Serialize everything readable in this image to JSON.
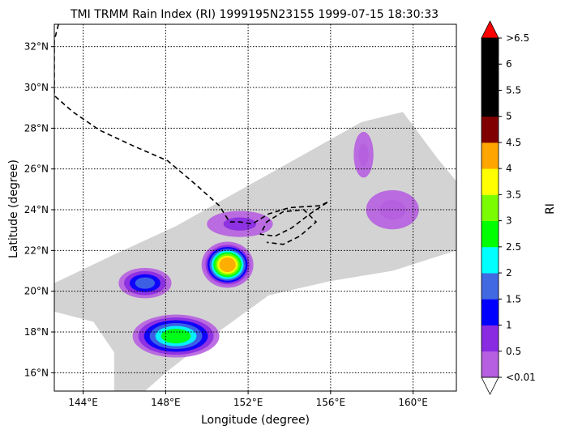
{
  "chart_data": {
    "type": "heatmap",
    "title": "TMI TRMM Rain Index (RI) 1999195N23155 1999-07-15 18:30:33",
    "xlabel": "Longitude (degree)",
    "ylabel": "Latitude (degree)",
    "xlim": [
      142.6,
      162.1
    ],
    "ylim": [
      15.1,
      33.1
    ],
    "x_ticks": [
      144,
      148,
      152,
      156,
      160
    ],
    "x_tick_labels": [
      "144°E",
      "148°E",
      "152°E",
      "156°E",
      "160°E"
    ],
    "y_ticks": [
      16,
      18,
      20,
      22,
      24,
      26,
      28,
      30,
      32
    ],
    "y_tick_labels": [
      "16°N",
      "18°N",
      "20°N",
      "22°N",
      "24°N",
      "26°N",
      "28°N",
      "30°N",
      "32°N"
    ],
    "grid": "dotted",
    "colorbar": {
      "label": "RI",
      "boundaries": [
        0.01,
        0.5,
        1,
        1.5,
        2,
        2.5,
        3,
        3.5,
        4,
        4.5,
        5,
        5.5,
        6,
        6.5
      ],
      "tick_labels": [
        "<0.01",
        "0.5",
        "1",
        "1.5",
        "2",
        "2.5",
        "3",
        "3.5",
        "4",
        "4.5",
        "5",
        "5.5",
        "6",
        ">6.5"
      ],
      "colors": [
        "#b65fe0",
        "#8a2be2",
        "#0000ff",
        "#4169e1",
        "#00ffff",
        "#00ff00",
        "#7cfc00",
        "#ffff00",
        "#ffa500",
        "#800000",
        "#000000",
        "#000000",
        "#000000"
      ],
      "under_color": "#ffffff",
      "over_color": "#ff0000"
    },
    "swath": {
      "color": "#d3d3d3",
      "polygon": [
        [
          142.6,
          20.4
        ],
        [
          145.5,
          21.8
        ],
        [
          148.5,
          23.2
        ],
        [
          151.5,
          24.9
        ],
        [
          154.5,
          26.6
        ],
        [
          157.5,
          28.3
        ],
        [
          159.5,
          28.8
        ],
        [
          161.2,
          26.5
        ],
        [
          162.1,
          25.4
        ],
        [
          162.1,
          22.0
        ],
        [
          159.0,
          21.0
        ],
        [
          156.0,
          20.5
        ],
        [
          153.0,
          19.8
        ],
        [
          150.0,
          17.6
        ],
        [
          148.0,
          16.0
        ],
        [
          147.0,
          15.1
        ],
        [
          145.5,
          15.1
        ],
        [
          145.5,
          17.0
        ],
        [
          144.5,
          18.5
        ],
        [
          142.6,
          19.0
        ]
      ]
    },
    "rain_features": [
      {
        "name": "core",
        "cx": 151.0,
        "cy": 21.3,
        "rx": 1.0,
        "ry": 0.9,
        "ri": 4.2
      },
      {
        "name": "band-south",
        "cx": 148.5,
        "cy": 17.8,
        "rx": 1.8,
        "ry": 0.9,
        "ri": 2.5
      },
      {
        "name": "band-west",
        "cx": 147.0,
        "cy": 20.4,
        "rx": 1.2,
        "ry": 0.7,
        "ri": 1.5
      },
      {
        "name": "outer-north",
        "cx": 151.6,
        "cy": 23.3,
        "rx": 2.0,
        "ry": 0.8,
        "ri": 0.5
      },
      {
        "name": "east-cells",
        "cx": 159.0,
        "cy": 24.0,
        "rx": 1.6,
        "ry": 1.2,
        "ri": 0.3
      },
      {
        "name": "northeast-cells",
        "cx": 157.6,
        "cy": 26.7,
        "rx": 0.6,
        "ry": 1.4,
        "ri": 0.3
      }
    ],
    "track": {
      "style": "dashed",
      "color": "#000000",
      "points": [
        [
          142.8,
          33.1
        ],
        [
          142.6,
          32.3
        ],
        [
          142.6,
          29.6
        ],
        [
          143.5,
          28.8
        ],
        [
          144.8,
          27.9
        ],
        [
          146.5,
          27.1
        ],
        [
          148.1,
          26.4
        ],
        [
          149.5,
          25.2
        ],
        [
          150.6,
          24.2
        ],
        [
          151.1,
          23.4
        ],
        [
          151.6,
          23.4
        ],
        [
          152.2,
          23.3
        ],
        [
          153.0,
          23.8
        ],
        [
          154.0,
          24.1
        ],
        [
          155.5,
          24.2
        ],
        [
          155.9,
          24.4
        ],
        [
          155.0,
          23.8
        ],
        [
          154.1,
          23.1
        ],
        [
          153.3,
          22.7
        ],
        [
          152.6,
          22.8
        ],
        [
          152.9,
          23.4
        ],
        [
          153.7,
          23.9
        ],
        [
          154.7,
          24.0
        ],
        [
          155.3,
          23.4
        ],
        [
          154.5,
          22.7
        ],
        [
          153.7,
          22.3
        ],
        [
          152.9,
          22.4
        ]
      ]
    }
  }
}
